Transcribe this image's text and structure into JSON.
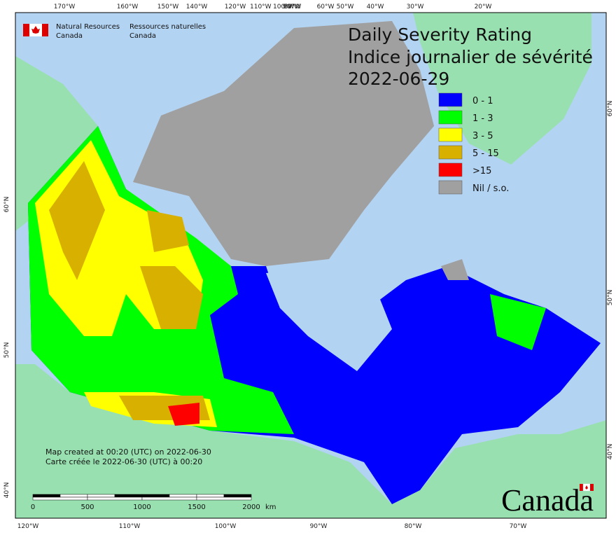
{
  "agency": {
    "en": [
      "Natural Resources",
      "Canada"
    ],
    "fr": [
      "Ressources naturelles",
      "Canada"
    ]
  },
  "title": [
    "Daily Severity Rating",
    "Indice journalier de sévérité",
    "2022-06-29"
  ],
  "legend": [
    {
      "label": "0 - 1",
      "color": "#0000ff"
    },
    {
      "label": "1 - 3",
      "color": "#00ff00"
    },
    {
      "label": "3 - 5",
      "color": "#ffff00"
    },
    {
      "label": "5 - 15",
      "color": "#d8b000"
    },
    {
      "label": ">15",
      "color": "#ff0000"
    },
    {
      "label": "Nil / s.o.",
      "color": "#a0a0a0"
    }
  ],
  "top_longitudes": [
    "170°W",
    "160°W",
    "150°W",
    "140°W",
    "120°W",
    "110°W",
    "100°W",
    "90°W",
    "80°W",
    "60°W",
    "50°W",
    "40°W",
    "30°W",
    "20°W"
  ],
  "bottom_longitudes": [
    "120°W",
    "110°W",
    "100°W",
    "90°W",
    "80°W",
    "70°W"
  ],
  "left_latitudes": [
    "60°N",
    "50°N",
    "40°N"
  ],
  "right_latitudes": [
    "60°N",
    "50°N",
    "40°N"
  ],
  "footer": [
    "Map created at 00:20 (UTC) on 2022-06-30",
    "Carte créée le 2022-06-30 (UTC) à 00:20"
  ],
  "scale": {
    "ticks": [
      0,
      500,
      1000,
      1500,
      2000
    ],
    "unit": "km"
  },
  "wordmark": "Canada"
}
